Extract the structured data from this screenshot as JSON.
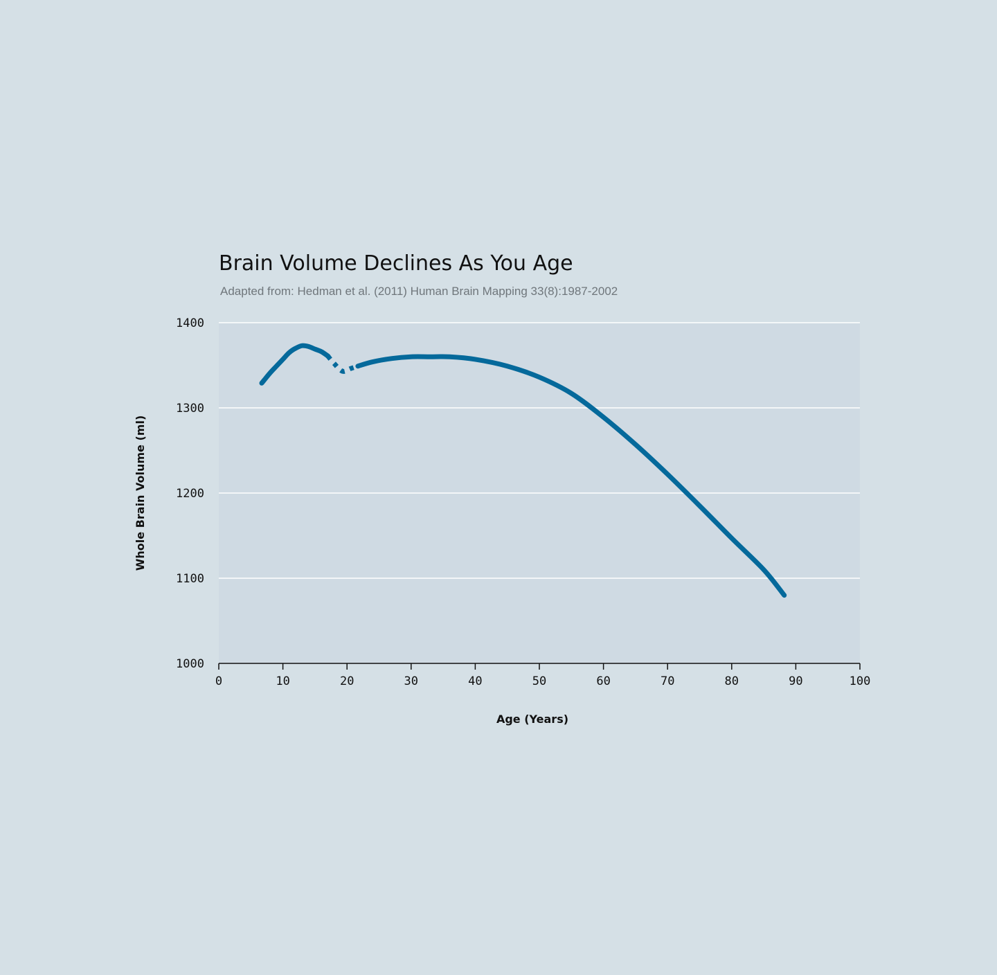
{
  "chart_data": {
    "type": "line",
    "title": "Brain Volume Declines As You Age",
    "subtitle": "Adapted from: Hedman et al. (2011) Human Brain Mapping 33(8):1987-2002",
    "xlabel": "Age (Years)",
    "ylabel": "Whole Brain Volume (ml)",
    "xlim": [
      0,
      100
    ],
    "ylim": [
      1000,
      1400
    ],
    "x_ticks": [
      "0",
      "10",
      "20",
      "30",
      "40",
      "50",
      "60",
      "70",
      "80",
      "90",
      "100"
    ],
    "y_ticks": [
      "1400",
      "1300",
      "1200",
      "1100",
      "1000"
    ],
    "grid": "horizontal",
    "series": [
      {
        "color": "#05699b",
        "segments": [
          {
            "style": "solid",
            "points": [
              [
                6.7,
                1329
              ],
              [
                8,
                1341
              ],
              [
                9,
                1349
              ],
              [
                10,
                1357
              ],
              [
                11,
                1365
              ],
              [
                12,
                1370
              ],
              [
                13,
                1373
              ],
              [
                14,
                1372
              ],
              [
                15,
                1369
              ],
              [
                16,
                1366
              ],
              [
                17,
                1361
              ]
            ]
          },
          {
            "style": "dashed",
            "points": [
              [
                17,
                1361
              ],
              [
                18,
                1352
              ],
              [
                19.3,
                1343
              ],
              [
                20.5,
                1346
              ],
              [
                21.7,
                1349
              ]
            ]
          },
          {
            "style": "solid",
            "points": [
              [
                21.7,
                1349
              ],
              [
                24,
                1354
              ],
              [
                27,
                1358
              ],
              [
                30,
                1360
              ],
              [
                33,
                1360
              ],
              [
                36,
                1360
              ],
              [
                40,
                1357
              ],
              [
                45,
                1349
              ],
              [
                50,
                1336
              ],
              [
                55,
                1317
              ],
              [
                60,
                1289
              ],
              [
                65,
                1257
              ],
              [
                70,
                1222
              ],
              [
                75,
                1185
              ],
              [
                80,
                1147
              ],
              [
                85,
                1110
              ],
              [
                88.2,
                1080
              ]
            ]
          }
        ]
      }
    ]
  }
}
